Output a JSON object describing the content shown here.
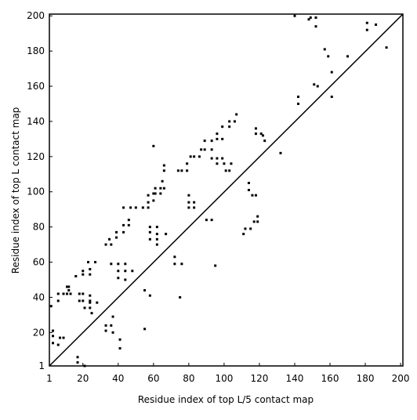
{
  "chart_data": {
    "type": "scatter",
    "xlabel": "Residue index of top L/5 contact map",
    "ylabel": "Residue index of top L contact map",
    "xlim": [
      1,
      201.3
    ],
    "ylim": [
      1,
      201
    ],
    "xticks": [
      1,
      20,
      40,
      60,
      80,
      100,
      120,
      140,
      160,
      180,
      200
    ],
    "yticks": [
      1,
      20,
      40,
      60,
      80,
      100,
      120,
      140,
      160,
      180,
      200
    ],
    "diagonal": true,
    "color": "#000000",
    "x": [
      2,
      3,
      3,
      3,
      6,
      6,
      7,
      6,
      9,
      9,
      11,
      12,
      12,
      11,
      13,
      16,
      17,
      17,
      18,
      18,
      20,
      20,
      20,
      20,
      21,
      21,
      23,
      24,
      24,
      24,
      24,
      24,
      24,
      25,
      27,
      28,
      33,
      33,
      33,
      35,
      36,
      36,
      36,
      37,
      37,
      39,
      39,
      40,
      40,
      40,
      41,
      41,
      43,
      43,
      43,
      44,
      44,
      44,
      46,
      46,
      47,
      48,
      50,
      54,
      55,
      55,
      57,
      57,
      57,
      58,
      58,
      58,
      58,
      60,
      60,
      60,
      61,
      61,
      62,
      62,
      62,
      62,
      64,
      64,
      65,
      66,
      66,
      66,
      67,
      72,
      72,
      74,
      76,
      76,
      75,
      79,
      79,
      80,
      80,
      80,
      81,
      83,
      83,
      83,
      86,
      87,
      89,
      89,
      90,
      93,
      93,
      93,
      93,
      95,
      96,
      96,
      96,
      96,
      99,
      99,
      99,
      100,
      101,
      103,
      103,
      103,
      104,
      106,
      107,
      111,
      112,
      114,
      114,
      115,
      116,
      117,
      118,
      118,
      118,
      119,
      119,
      121,
      122,
      123,
      132,
      140,
      142,
      142,
      148,
      149,
      151,
      152,
      152,
      153,
      157,
      159,
      161,
      161,
      170,
      181,
      181,
      186,
      192
    ],
    "y": [
      35,
      21,
      18,
      14,
      42,
      38,
      17,
      13,
      17,
      42,
      46,
      46,
      44,
      42,
      42,
      52,
      6,
      3,
      42,
      38,
      42,
      38,
      55,
      53,
      34,
      1,
      60,
      56,
      53,
      41,
      38,
      37,
      34,
      31,
      60,
      37,
      70,
      24,
      21,
      73,
      70,
      59,
      24,
      29,
      20,
      77,
      74,
      59,
      55,
      51,
      16,
      11,
      91,
      81,
      77,
      59,
      55,
      50,
      84,
      81,
      91,
      55,
      91,
      91,
      44,
      22,
      98,
      94,
      91,
      80,
      77,
      73,
      41,
      126,
      99,
      95,
      102,
      99,
      80,
      76,
      70,
      73,
      99,
      102,
      106,
      115,
      112,
      102,
      76,
      63,
      59,
      112,
      112,
      59,
      40,
      112,
      116,
      98,
      94,
      91,
      120,
      120,
      94,
      91,
      120,
      124,
      124,
      129,
      84,
      124,
      129,
      119,
      84,
      58,
      130,
      133,
      119,
      116,
      130,
      137,
      119,
      116,
      112,
      137,
      140,
      112,
      116,
      140,
      144,
      76,
      79,
      105,
      101,
      79,
      98,
      83,
      136,
      133,
      98,
      86,
      83,
      133,
      132,
      129,
      122,
      200,
      154,
      150,
      198,
      199,
      161,
      194,
      199,
      160,
      181,
      177,
      168,
      154,
      177,
      196,
      192,
      195,
      182
    ]
  }
}
